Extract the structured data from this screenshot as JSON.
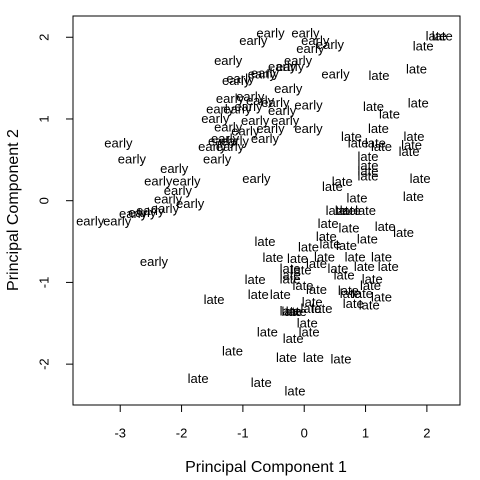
{
  "chart_data": {
    "type": "scatter",
    "x_label": "Principal Component 1",
    "y_label": "Principal Component 2",
    "xlim": [
      -3.77,
      2.54
    ],
    "ylim": [
      -2.5,
      2.26
    ],
    "xticks": [
      -3,
      -2,
      -1,
      0,
      1,
      2
    ],
    "yticks": [
      -2,
      -1,
      0,
      1,
      2
    ],
    "color": "#000000",
    "x": [
      -0.55,
      0.02,
      0.18,
      -0.83,
      0.42,
      0.1,
      -1.24,
      -0.1,
      -0.36,
      -0.23,
      -0.64,
      0.51,
      -1.04,
      -0.69,
      -1.11,
      -0.26,
      -0.88,
      -1.21,
      -0.72,
      -0.47,
      0.07,
      -1.09,
      -0.91,
      -1.37,
      -0.36,
      -1.45,
      -0.8,
      -0.31,
      -1.24,
      -0.55,
      -0.96,
      0.07,
      -1.29,
      -0.64,
      -1.13,
      -1.21,
      -3.03,
      -2.81,
      -1.42,
      -2.12,
      -1.92,
      -2.38,
      -0.78,
      -2.06,
      -2.22,
      -1.86,
      -2.51,
      -2.79,
      -2.64,
      -3.49,
      -3.05,
      -2.27,
      -2.45,
      -1.5,
      -1.34,
      2.25,
      2.15,
      1.94,
      1.83,
      1.22,
      1.86,
      1.13,
      1.39,
      1.21,
      0.77,
      1.79,
      0.88,
      1.16,
      1.75,
      1.26,
      1.71,
      1.04,
      1.04,
      1.04,
      1.04,
      1.89,
      1.78,
      0.62,
      0.46,
      0.86,
      0.52,
      0.67,
      0.75,
      1.0,
      0.39,
      0.73,
      1.32,
      1.62,
      1.03,
      0.36,
      -0.64,
      0.07,
      0.42,
      0.69,
      -0.51,
      -0.11,
      0.33,
      0.83,
      1.26,
      -0.23,
      -0.05,
      0.2,
      0.55,
      0.98,
      1.37,
      -0.8,
      -0.23,
      -0.23,
      0.65,
      1.11,
      -0.02,
      0.2,
      0.72,
      1.08,
      -1.47,
      -0.75,
      -0.39,
      0.13,
      0.75,
      0.95,
      1.26,
      -0.23,
      -0.2,
      -0.13,
      0.11,
      0.29,
      0.8,
      1.06,
      0.05,
      0.08,
      -0.6,
      -0.18,
      -1.17,
      -0.29,
      0.15,
      0.6,
      -1.73,
      -0.7,
      -0.15
    ],
    "values": [
      2.04,
      2.04,
      1.95,
      1.95,
      1.9,
      1.85,
      1.7,
      1.7,
      1.63,
      1.63,
      1.55,
      1.54,
      1.48,
      1.54,
      1.46,
      1.36,
      1.26,
      1.24,
      1.21,
      1.19,
      1.16,
      1.11,
      1.14,
      1.11,
      1.09,
      0.99,
      0.97,
      0.97,
      0.89,
      0.87,
      0.84,
      0.87,
      0.75,
      0.75,
      0.72,
      0.65,
      0.69,
      0.5,
      0.5,
      0.38,
      0.23,
      0.23,
      0.26,
      0.11,
      0.01,
      -0.05,
      -0.13,
      -0.17,
      -0.16,
      -0.26,
      -0.26,
      -0.11,
      -0.76,
      0.65,
      0.72,
      2.0,
      2.0,
      1.88,
      1.6,
      1.52,
      1.18,
      1.14,
      1.05,
      0.87,
      0.77,
      0.77,
      0.69,
      0.69,
      0.67,
      0.65,
      0.59,
      0.53,
      0.42,
      0.35,
      0.29,
      0.26,
      0.04,
      0.22,
      0.16,
      0.02,
      -0.13,
      -0.13,
      -0.13,
      -0.13,
      -0.29,
      -0.35,
      -0.33,
      -0.4,
      -0.48,
      -0.45,
      -0.51,
      -0.58,
      -0.54,
      -0.56,
      -0.71,
      -0.72,
      -0.7,
      -0.7,
      -0.7,
      -0.84,
      -0.86,
      -0.78,
      -0.84,
      -0.82,
      -0.82,
      -0.98,
      -0.92,
      -0.97,
      -0.92,
      -0.97,
      -1.05,
      -1.1,
      -1.11,
      -1.05,
      -1.22,
      -1.16,
      -1.16,
      -1.25,
      -1.15,
      -1.15,
      -1.19,
      -1.36,
      -1.37,
      -1.37,
      -1.33,
      -1.33,
      -1.27,
      -1.29,
      -1.51,
      -1.62,
      -1.62,
      -1.7,
      -1.85,
      -1.93,
      -1.93,
      -1.95,
      -2.19,
      -2.24,
      -2.34
    ],
    "labels": [
      "early",
      "early",
      "early",
      "early",
      "early",
      "early",
      "early",
      "early",
      "early",
      "early",
      "early",
      "early",
      "early",
      "early",
      "early",
      "early",
      "early",
      "early",
      "early",
      "early",
      "early",
      "early",
      "early",
      "early",
      "early",
      "early",
      "early",
      "early",
      "early",
      "early",
      "early",
      "early",
      "early",
      "early",
      "early",
      "early",
      "early",
      "early",
      "early",
      "early",
      "early",
      "early",
      "early",
      "early",
      "early",
      "early",
      "early",
      "early",
      "early",
      "early",
      "early",
      "early",
      "early",
      "early",
      "early",
      "late",
      "late",
      "late",
      "late",
      "late",
      "late",
      "late",
      "late",
      "late",
      "late",
      "late",
      "late",
      "late",
      "late",
      "late",
      "late",
      "late",
      "late",
      "late",
      "late",
      "late",
      "late",
      "late",
      "late",
      "late",
      "late",
      "late",
      "late",
      "late",
      "late",
      "late",
      "late",
      "late",
      "late",
      "late",
      "late",
      "late",
      "late",
      "late",
      "late",
      "late",
      "late",
      "late",
      "late",
      "late",
      "late",
      "late",
      "late",
      "late",
      "late",
      "late",
      "late",
      "late",
      "late",
      "late",
      "late",
      "late",
      "late",
      "late",
      "late",
      "late",
      "late",
      "late",
      "late",
      "late",
      "late",
      "late",
      "late",
      "late",
      "late",
      "late",
      "late",
      "late",
      "late",
      "late",
      "late",
      "late",
      "late",
      "late",
      "late",
      "late",
      "late",
      "late",
      "late"
    ]
  }
}
